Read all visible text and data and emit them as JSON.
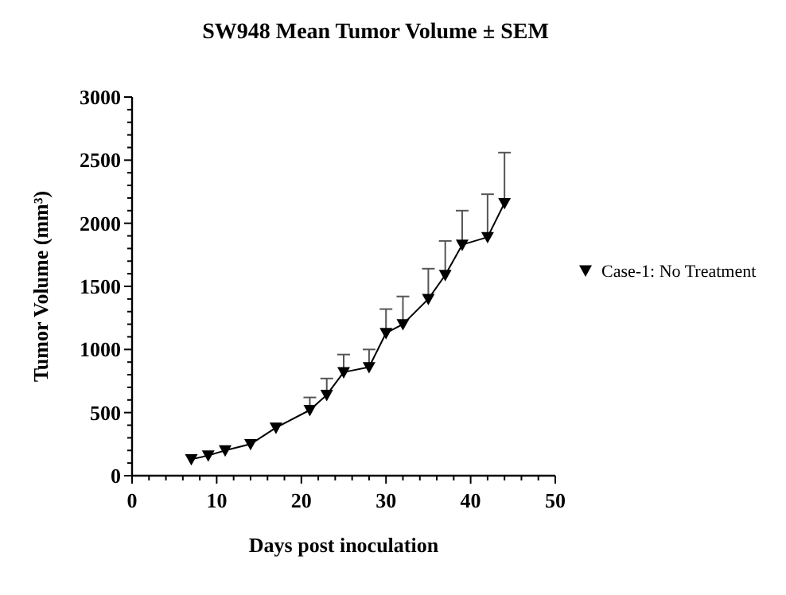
{
  "chart_data": {
    "type": "line",
    "title": "SW948 Mean Tumor Volume ± SEM",
    "xlabel": "Days post inoculation",
    "ylabel": "Tumor Volume (mm³)",
    "x": [
      7,
      9,
      11,
      14,
      17,
      21,
      23,
      25,
      28,
      30,
      32,
      35,
      37,
      39,
      42,
      44
    ],
    "series": [
      {
        "name": "Case-1: No Treatment",
        "color": "#000000",
        "values": [
          130,
          160,
          200,
          250,
          380,
          520,
          640,
          820,
          860,
          1130,
          1200,
          1400,
          1590,
          1830,
          1890,
          2160
        ],
        "errors": [
          null,
          null,
          null,
          null,
          null,
          [
            520,
            620
          ],
          [
            640,
            770
          ],
          [
            820,
            960
          ],
          [
            860,
            1000
          ],
          [
            1130,
            1320
          ],
          [
            1200,
            1420
          ],
          [
            1400,
            1640
          ],
          [
            1590,
            1860
          ],
          [
            1830,
            2100
          ],
          [
            1890,
            2230
          ],
          [
            2160,
            2560
          ]
        ]
      }
    ],
    "xlim": [
      0,
      50
    ],
    "ylim": [
      0,
      3000
    ],
    "xticks": [
      0,
      {
        "value": 2,
        "label": null
      },
      {
        "value": 4,
        "label": null
      },
      {
        "value": 6,
        "label": null
      },
      {
        "value": 8,
        "label": null
      },
      10,
      {
        "value": 12,
        "label": null
      },
      {
        "value": 14,
        "label": null
      },
      {
        "value": 16,
        "label": null
      },
      {
        "value": 18,
        "label": null
      },
      20,
      {
        "value": 22,
        "label": null
      },
      {
        "value": 24,
        "label": null
      },
      {
        "value": 26,
        "label": null
      },
      {
        "value": 28,
        "label": null
      },
      30,
      {
        "value": 32,
        "label": null
      },
      {
        "value": 34,
        "label": null
      },
      {
        "value": 36,
        "label": null
      },
      {
        "value": 38,
        "label": null
      },
      40,
      {
        "value": 42,
        "label": null
      },
      {
        "value": 44,
        "label": null
      },
      {
        "value": 46,
        "label": null
      },
      {
        "value": 48,
        "label": null
      },
      50
    ],
    "yticks": [
      0,
      {
        "value": 100,
        "label": null
      },
      {
        "value": 200,
        "label": null
      },
      {
        "value": 300,
        "label": null
      },
      {
        "value": 400,
        "label": null
      },
      500,
      {
        "value": 600,
        "label": null
      },
      {
        "value": 700,
        "label": null
      },
      {
        "value": 800,
        "label": null
      },
      {
        "value": 900,
        "label": null
      },
      1000,
      {
        "value": 1100,
        "label": null
      },
      {
        "value": 1200,
        "label": null
      },
      {
        "value": 1300,
        "label": null
      },
      {
        "value": 1400,
        "label": null
      },
      1500,
      {
        "value": 1600,
        "label": null
      },
      {
        "value": 1700,
        "label": null
      },
      {
        "value": 1800,
        "label": null
      },
      {
        "value": 1900,
        "label": null
      },
      2000,
      {
        "value": 2100,
        "label": null
      },
      {
        "value": 2200,
        "label": null
      },
      {
        "value": 2300,
        "label": null
      },
      {
        "value": 2400,
        "label": null
      },
      2500,
      {
        "value": 2600,
        "label": null
      },
      {
        "value": 2700,
        "label": null
      },
      {
        "value": 2800,
        "label": null
      },
      {
        "value": 2900,
        "label": null
      },
      3000
    ],
    "marker": "triangle",
    "legend": "right",
    "grid": false
  }
}
